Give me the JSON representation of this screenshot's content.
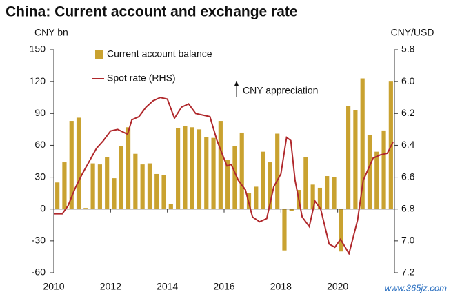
{
  "chart_data": {
    "type": "bar_line",
    "title": "China: Current account and exchange rate",
    "y_label": "CNY bn",
    "y2_label": "CNY/USD",
    "annotation": "CNY appreciation",
    "watermark": "www.365jz.com",
    "xlim": [
      2010,
      2022
    ],
    "xticks": [
      2010,
      2012,
      2014,
      2016,
      2018,
      2020
    ],
    "ylim": [
      -60,
      150
    ],
    "yticks": [
      -60,
      -30,
      0,
      30,
      60,
      90,
      120,
      150
    ],
    "y2lim": [
      7.2,
      5.8
    ],
    "y2ticks": [
      {
        "value": 7.2,
        "label": "7.2"
      },
      {
        "value": 7,
        "label": "7.0"
      },
      6.8,
      6.6,
      6.4,
      6.2,
      {
        "value": 6,
        "label": "6.0"
      },
      5.8
    ],
    "series": [
      {
        "name": "Current account balance",
        "type": "bar",
        "color": "#c9a230",
        "x": [
          2010,
          2010.25,
          2010.5,
          2010.75,
          2011,
          2011.25,
          2011.5,
          2011.75,
          2012,
          2012.25,
          2012.5,
          2012.75,
          2013,
          2013.25,
          2013.5,
          2013.75,
          2014,
          2014.25,
          2014.5,
          2014.75,
          2015,
          2015.25,
          2015.5,
          2015.75,
          2016,
          2016.25,
          2016.5,
          2016.75,
          2017,
          2017.25,
          2017.5,
          2017.75,
          2018,
          2018.25,
          2018.5,
          2018.75,
          2019,
          2019.25,
          2019.5,
          2019.75,
          2020,
          2020.25,
          2020.5,
          2020.75,
          2021,
          2021.25,
          2021.5,
          2021.75
        ],
        "values": [
          25,
          44,
          83,
          86,
          1,
          43,
          42,
          49,
          29,
          59,
          77,
          52,
          42,
          43,
          33,
          32,
          5,
          76,
          78,
          77,
          75,
          68,
          67,
          83,
          46,
          59,
          72,
          15,
          21,
          54,
          44,
          71,
          -39,
          -2,
          18,
          49,
          23,
          20,
          31,
          30,
          -40,
          97,
          93,
          123,
          70,
          54,
          74,
          120
        ]
      },
      {
        "name": "Spot rate (RHS)",
        "type": "line",
        "axis": "y2",
        "color": "#b0282c",
        "x": [
          2010,
          2010.3,
          2010.5,
          2010.75,
          2011,
          2011.25,
          2011.5,
          2011.75,
          2012,
          2012.25,
          2012.6,
          2012.75,
          2013,
          2013.25,
          2013.5,
          2013.75,
          2014,
          2014.25,
          2014.5,
          2014.75,
          2015,
          2015.25,
          2015.5,
          2015.75,
          2016.1,
          2016.25,
          2016.5,
          2016.75,
          2017,
          2017.25,
          2017.5,
          2017.75,
          2018,
          2018.2,
          2018.35,
          2018.5,
          2018.75,
          2019,
          2019.2,
          2019.4,
          2019.7,
          2019.9,
          2020.1,
          2020.4,
          2020.7,
          2020.9,
          2021.25,
          2021.5,
          2021.75,
          2021.95
        ],
        "values": [
          6.83,
          6.83,
          6.78,
          6.67,
          6.58,
          6.5,
          6.42,
          6.37,
          6.31,
          6.3,
          6.33,
          6.24,
          6.22,
          6.16,
          6.12,
          6.1,
          6.11,
          6.23,
          6.16,
          6.14,
          6.2,
          6.21,
          6.22,
          6.37,
          6.53,
          6.52,
          6.62,
          6.68,
          6.85,
          6.88,
          6.86,
          6.66,
          6.58,
          6.35,
          6.37,
          6.62,
          6.85,
          6.91,
          6.75,
          6.8,
          7.02,
          7.04,
          6.99,
          7.08,
          6.87,
          6.62,
          6.48,
          6.46,
          6.45,
          6.38
        ]
      }
    ]
  }
}
